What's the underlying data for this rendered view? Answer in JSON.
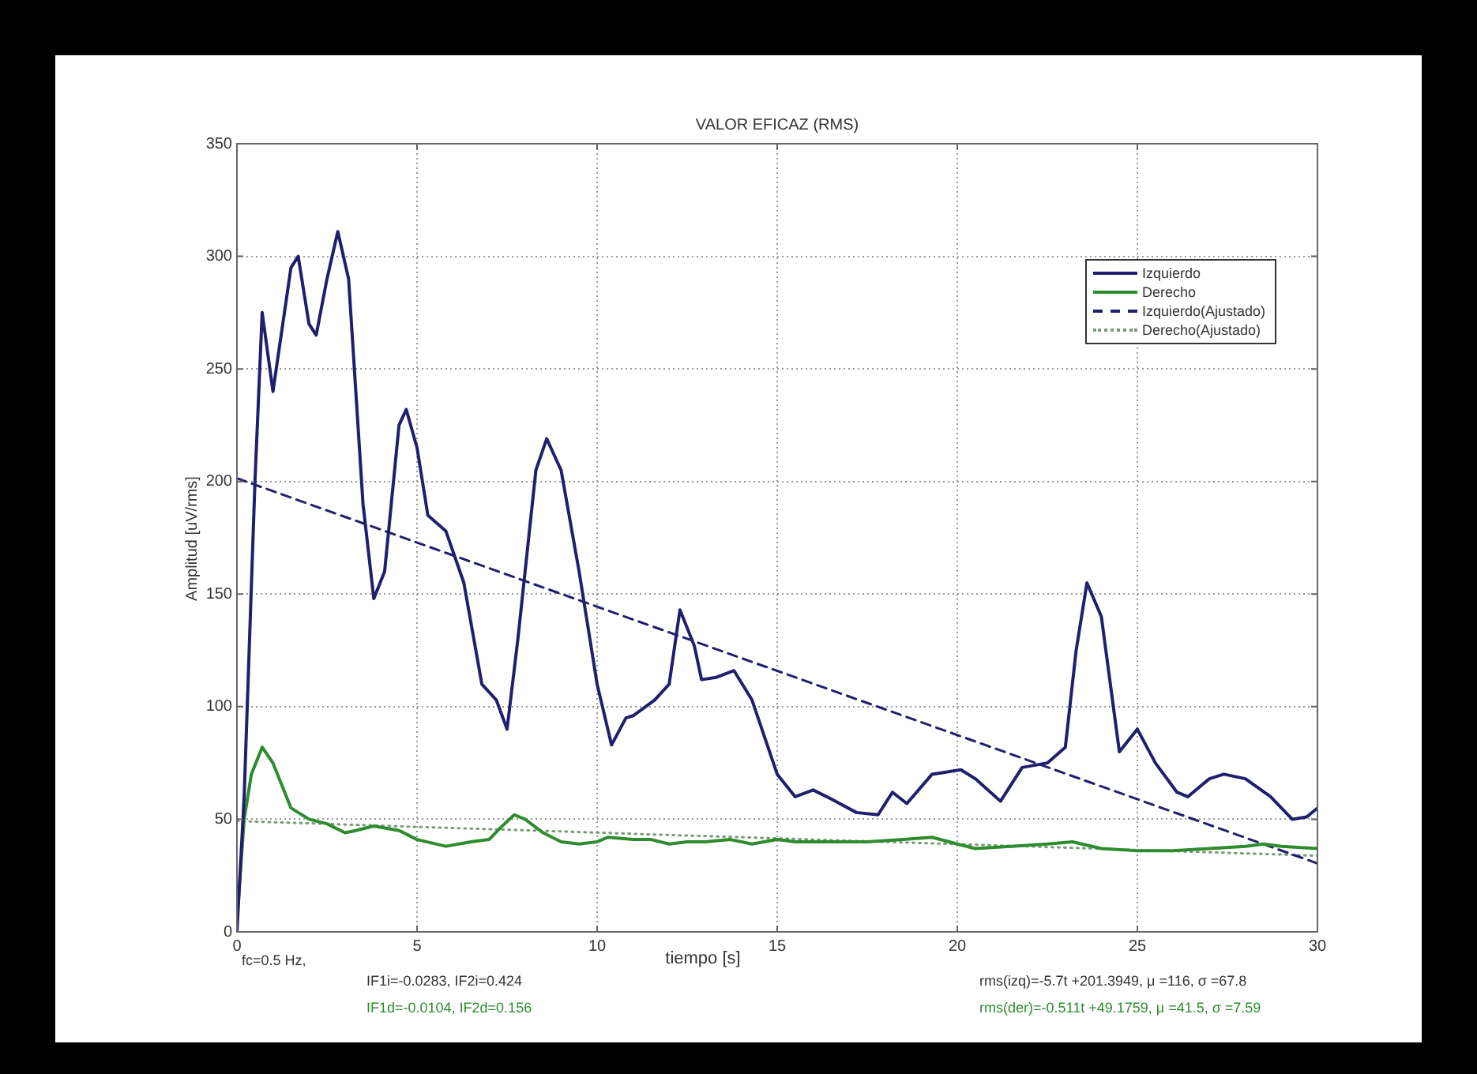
{
  "chart_data": {
    "type": "line",
    "title": "VALOR EFICAZ (RMS)",
    "xlabel": "tiempo [s]",
    "ylabel": "Amplitud [uV/rms]",
    "xlim": [
      0,
      30
    ],
    "ylim": [
      0,
      350
    ],
    "xticks": [
      0,
      5,
      10,
      15,
      20,
      25,
      30
    ],
    "yticks": [
      0,
      50,
      100,
      150,
      200,
      250,
      300,
      350
    ],
    "grid": true,
    "legend": "top right",
    "marker": "none",
    "series": [
      {
        "name": "Izquierdo",
        "color": "#1f1f6e",
        "line_style": "solid",
        "x": [
          0,
          0.2,
          0.5,
          0.7,
          1,
          1.5,
          1.7,
          2,
          2.2,
          2.5,
          2.8,
          3.1,
          3.5,
          3.8,
          4.1,
          4.5,
          4.7,
          5,
          5.3,
          5.8,
          6.3,
          6.8,
          7.2,
          7.5,
          7.8,
          8.3,
          8.6,
          9,
          9.5,
          10,
          10.4,
          10.8,
          11,
          11.6,
          12,
          12.3,
          12.7,
          12.9,
          13.3,
          13.8,
          14.3,
          15,
          15.5,
          16,
          16.5,
          17.2,
          17.8,
          18.2,
          18.6,
          19.3,
          20.1,
          20.5,
          21.2,
          21.8,
          22.5,
          23,
          23.3,
          23.6,
          24,
          24.5,
          25,
          25.5,
          26.1,
          26.4,
          27,
          27.4,
          28,
          28.7,
          29.3,
          29.7,
          30
        ],
        "values": [
          0,
          60,
          200,
          275,
          240,
          295,
          300,
          270,
          265,
          290,
          311,
          290,
          190,
          148,
          160,
          225,
          232,
          215,
          185,
          178,
          155,
          110,
          103,
          90,
          130,
          205,
          219,
          205,
          160,
          110,
          83,
          95,
          96,
          103,
          110,
          143,
          127,
          112,
          113,
          116,
          103,
          70,
          60,
          63,
          59,
          53,
          52,
          62,
          57,
          70,
          72,
          68,
          58,
          73,
          75,
          82,
          125,
          155,
          140,
          80,
          90,
          75,
          62,
          60,
          68,
          70,
          68,
          60,
          50,
          51,
          55
        ]
      },
      {
        "name": "Derecho",
        "color": "#2e8b2e",
        "line_style": "solid",
        "x": [
          0,
          0.2,
          0.4,
          0.7,
          1,
          1.5,
          2,
          2.5,
          3,
          3.3,
          3.8,
          4.5,
          5,
          5.8,
          6.5,
          7,
          7.3,
          7.7,
          8,
          8.5,
          9,
          9.5,
          10,
          10.3,
          11,
          11.5,
          12,
          12.5,
          13,
          13.7,
          14.3,
          15,
          15.5,
          16.5,
          17.5,
          18.5,
          19.3,
          20,
          20.5,
          21.5,
          22.5,
          23.2,
          24,
          25,
          26,
          27,
          28,
          28.5,
          29,
          30
        ],
        "values": [
          5,
          50,
          70,
          82,
          75,
          55,
          50,
          48,
          44,
          45,
          47,
          45,
          41,
          38,
          40,
          41,
          46,
          52,
          50,
          44,
          40,
          39,
          40,
          42,
          41,
          41,
          39,
          40,
          40,
          41,
          39,
          41,
          40,
          40,
          40,
          41,
          42,
          39,
          37,
          38,
          39,
          40,
          37,
          36,
          36,
          37,
          38,
          39,
          38,
          37
        ]
      },
      {
        "name": "Izquierdo(Ajustado)",
        "color": "#1f1f6e",
        "line_style": "dashed",
        "x": [
          0,
          30
        ],
        "values": [
          201.4,
          30.4
        ]
      },
      {
        "name": "Derecho(Ajustado)",
        "color": "#7a9a7a",
        "line_style": "dotted",
        "x": [
          0,
          30
        ],
        "values": [
          49.2,
          33.8
        ]
      }
    ],
    "annotations": [
      "fc=0.5 Hz,",
      "IF1i=-0.0283, IF2i=0.424",
      "IF1d=-0.0104, IF2d=0.156",
      "rms(izq)=-5.7t +201.3949, μ =116, σ =67.8",
      "rms(der)=-0.511t +49.1759, μ =41.5, σ =7.59"
    ]
  }
}
